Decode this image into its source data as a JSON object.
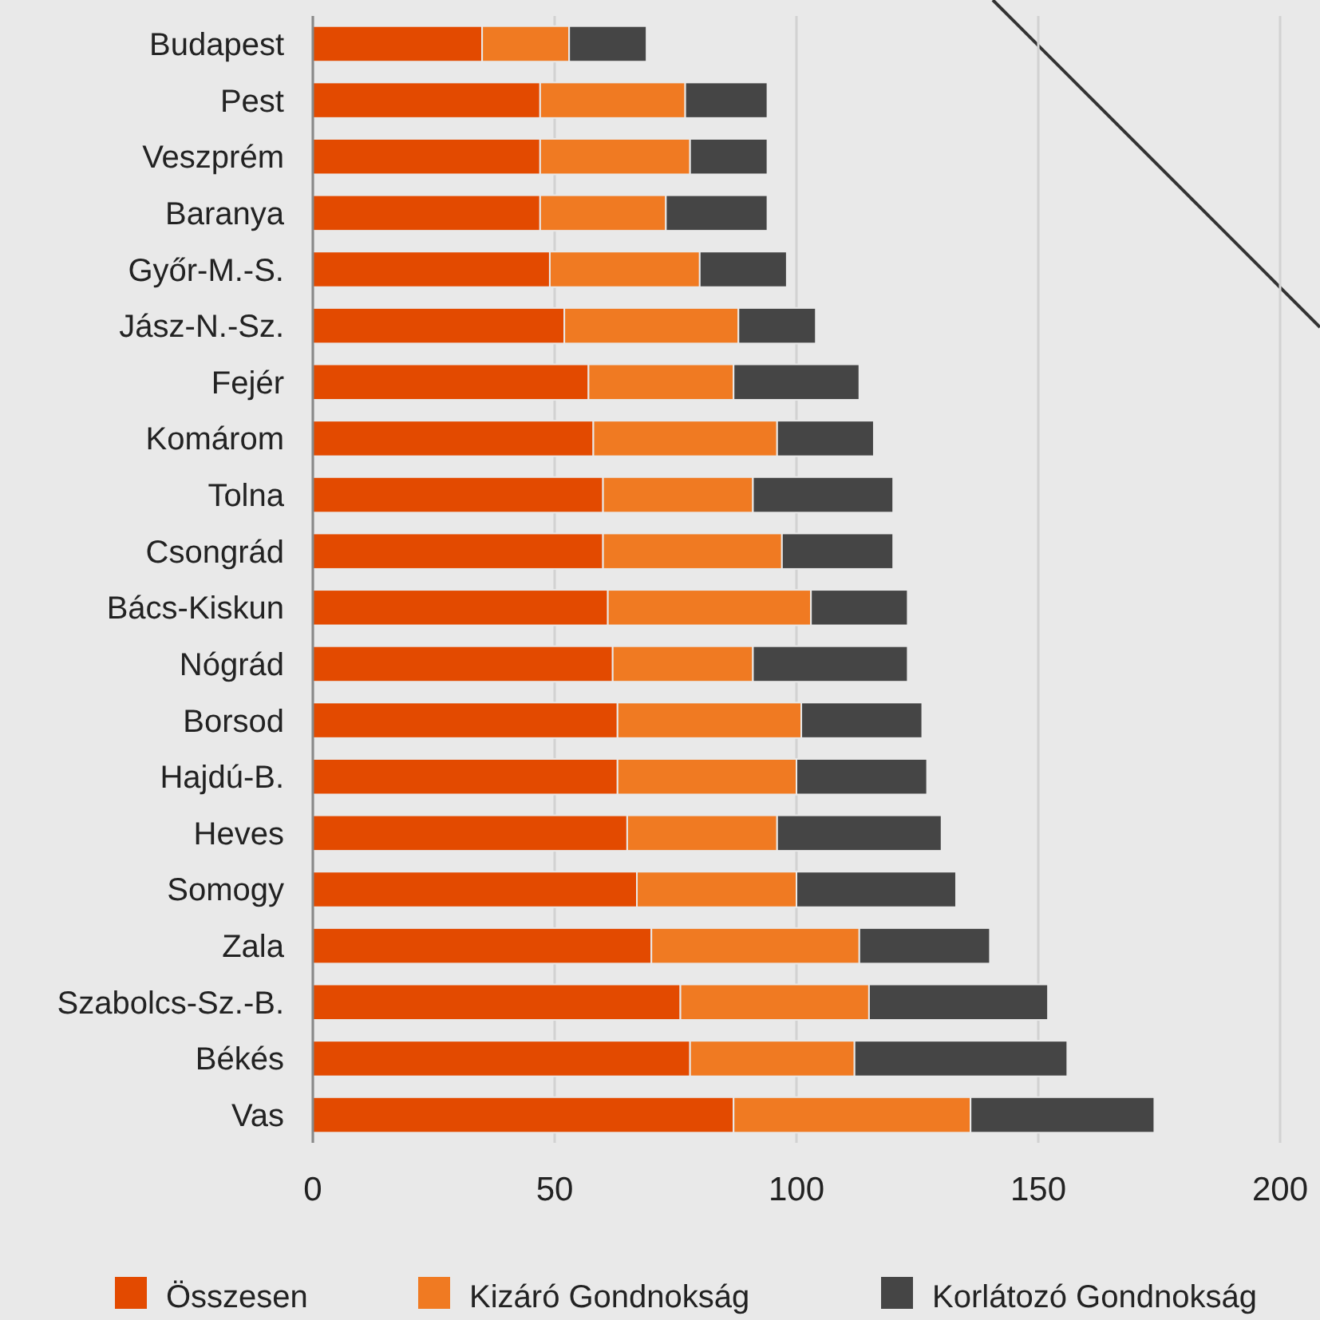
{
  "chart_data": {
    "type": "bar",
    "orientation": "horizontal",
    "stacked": true,
    "categories": [
      "Budapest",
      "Pest",
      "Veszprém",
      "Baranya",
      "Győr-M.-S.",
      "Jász-N.-Sz.",
      "Fejér",
      "Komárom",
      "Tolna",
      "Csongrád",
      "Bács-Kiskun",
      "Nógrád",
      "Borsod",
      "Hajdú-B.",
      "Heves",
      "Somogy",
      "Zala",
      "Szabolcs-Sz.-B.",
      "Békés",
      "Vas"
    ],
    "series": [
      {
        "name": "Összesen",
        "color": "#e34a00",
        "values": [
          35,
          47,
          47,
          47,
          49,
          52,
          57,
          58,
          60,
          60,
          61,
          62,
          63,
          63,
          65,
          67,
          70,
          76,
          78,
          87
        ]
      },
      {
        "name": "Kizáró Gondnokság",
        "color": "#f07a22",
        "values": [
          18,
          30,
          31,
          26,
          31,
          36,
          30,
          38,
          31,
          37,
          42,
          29,
          38,
          37,
          31,
          33,
          43,
          39,
          34,
          49
        ]
      },
      {
        "name": "Korlátozó Gondnokság",
        "color": "#454545",
        "values": [
          16,
          17,
          16,
          21,
          18,
          16,
          26,
          20,
          29,
          23,
          20,
          32,
          25,
          27,
          34,
          33,
          27,
          37,
          44,
          38
        ]
      }
    ],
    "xlim": [
      0,
      200
    ],
    "xticks": [
      0,
      50,
      100,
      150,
      200
    ],
    "grid": "x",
    "legend": "bottom"
  }
}
